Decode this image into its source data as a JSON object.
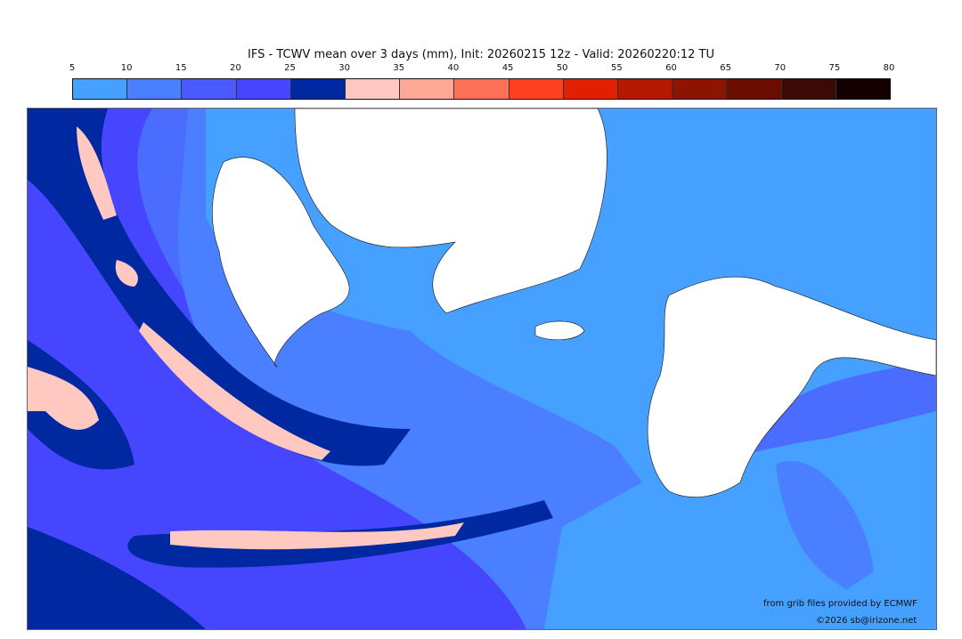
{
  "title": "IFS - TCWV mean over 3 days (mm), Init: 20260215 12z - Valid: 20260220:12 TU",
  "colorbar": {
    "ticks": [
      "5",
      "10",
      "15",
      "20",
      "25",
      "30",
      "35",
      "40",
      "45",
      "50",
      "55",
      "60",
      "65",
      "70",
      "75",
      "80"
    ],
    "colors": [
      "#45a0ff",
      "#4a80ff",
      "#4a5aff",
      "#4646ff",
      "#0028a0",
      "#ffc8c0",
      "#ffa898",
      "#ff7058",
      "#ff4020",
      "#e02000",
      "#b41800",
      "#8c1400",
      "#6a0c00",
      "#3c0a04",
      "#140000"
    ]
  },
  "credits": {
    "source": "from grib files provided by ECMWF",
    "copyright": "©2026 sb@irizone.net"
  }
}
